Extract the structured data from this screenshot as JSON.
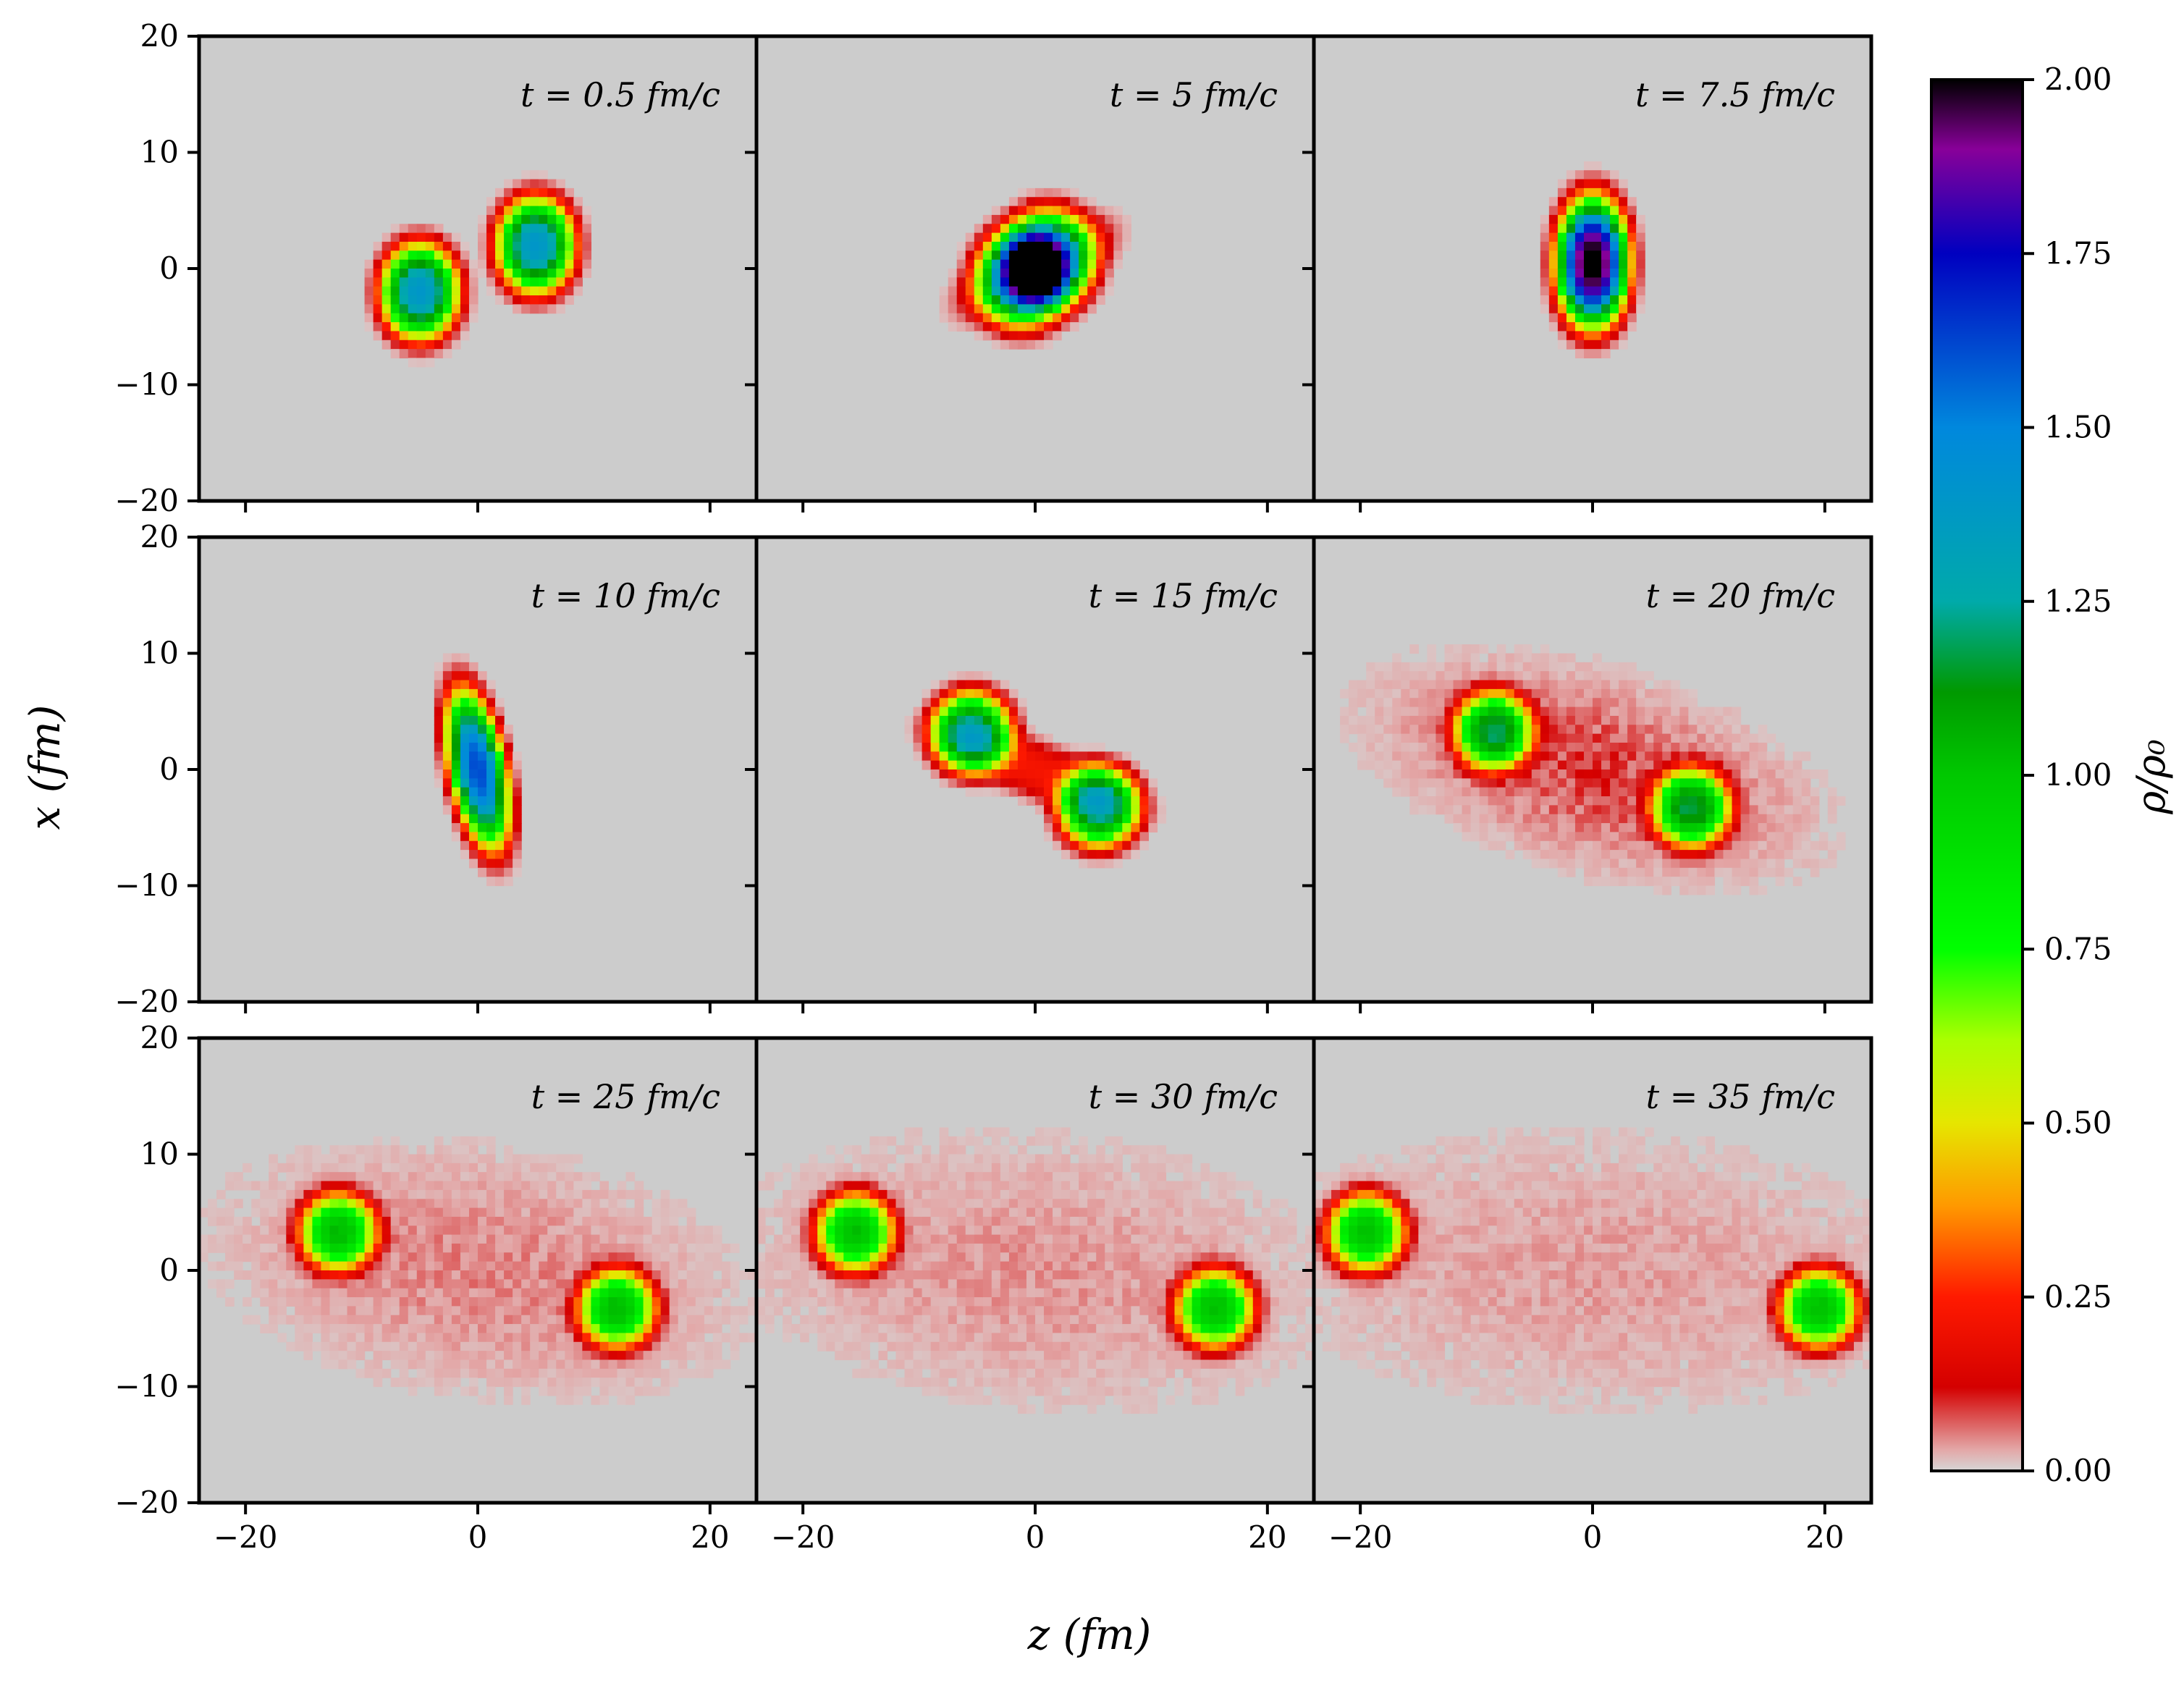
{
  "chart_data": {
    "type": "heatmap",
    "layout": "3x3 small multiples, shared axes",
    "xlabel": "z (fm)",
    "ylabel": "x (fm)",
    "xlim": [
      -24,
      24
    ],
    "ylim": [
      -20,
      20
    ],
    "x_ticks": [
      -20,
      0,
      20
    ],
    "x_tick_labels": [
      "−20",
      "0",
      "20"
    ],
    "y_ticks": [
      20,
      10,
      0,
      -10,
      -20
    ],
    "y_tick_labels": [
      "20",
      "10",
      "0",
      "−10",
      "−20"
    ],
    "colorbar": {
      "label": "ρ/ρ₀",
      "range": [
        0,
        2
      ],
      "ticks": [
        0,
        0.25,
        0.5,
        0.75,
        1.0,
        1.25,
        1.5,
        1.75,
        2.0
      ],
      "tick_labels": [
        "0.00",
        "0.25",
        "0.50",
        "0.75",
        "1.00",
        "1.25",
        "1.50",
        "1.75",
        "2.00"
      ],
      "colormap": [
        {
          "v": 0.0,
          "c": "#d6d6d6"
        },
        {
          "v": 0.03,
          "c": "#e3a8a8"
        },
        {
          "v": 0.12,
          "c": "#d40000"
        },
        {
          "v": 0.25,
          "c": "#ff1a00"
        },
        {
          "v": 0.38,
          "c": "#ff9800"
        },
        {
          "v": 0.5,
          "c": "#e6e600"
        },
        {
          "v": 0.62,
          "c": "#aaff00"
        },
        {
          "v": 0.75,
          "c": "#00ff00"
        },
        {
          "v": 1.0,
          "c": "#00c800"
        },
        {
          "v": 1.12,
          "c": "#009900"
        },
        {
          "v": 1.25,
          "c": "#00aaaa"
        },
        {
          "v": 1.5,
          "c": "#0088dd"
        },
        {
          "v": 1.75,
          "c": "#0000c0"
        },
        {
          "v": 1.9,
          "c": "#880099"
        },
        {
          "v": 2.0,
          "c": "#000000"
        }
      ]
    },
    "background_color": "#cccccc",
    "panels": [
      {
        "time_label": "t = 0.5 fm/c",
        "blobs": [
          {
            "z": -5,
            "x": -2,
            "peak": 1.4,
            "sz": 2.6,
            "sx": 3.2,
            "rho": 0
          },
          {
            "z": 5,
            "x": 2,
            "peak": 1.4,
            "sz": 2.6,
            "sx": 3.2,
            "rho": 0
          }
        ],
        "halo": null
      },
      {
        "time_label": "t = 5 fm/c",
        "blobs": [
          {
            "z": -1.2,
            "x": -0.8,
            "peak": 1.25,
            "sz": 3.0,
            "sx": 3.3,
            "rho": 0
          },
          {
            "z": 1.2,
            "x": 0.8,
            "peak": 1.25,
            "sz": 3.0,
            "sx": 3.3,
            "rho": 0
          },
          {
            "z": 0,
            "x": 0,
            "peak": 0.35,
            "sz": 4.8,
            "sx": 3.2,
            "rho": 0.6
          }
        ],
        "halo": null
      },
      {
        "time_label": "t = 7.5 fm/c",
        "blobs": [
          {
            "z": 0,
            "x": 0.5,
            "peak": 2.05,
            "sz": 2.4,
            "sx": 4.3,
            "rho": 0
          }
        ],
        "halo": null
      },
      {
        "time_label": "t = 10 fm/c",
        "blobs": [
          {
            "z": 0,
            "x": 0,
            "peak": 1.62,
            "sz": 2.1,
            "sx": 5.2,
            "rho": -0.45
          }
        ],
        "halo": null
      },
      {
        "time_label": "t = 15 fm/c",
        "blobs": [
          {
            "z": -5.5,
            "x": 3.2,
            "peak": 1.25,
            "sz": 2.7,
            "sx": 2.7,
            "rho": 0
          },
          {
            "z": 5.5,
            "x": -3.2,
            "peak": 1.25,
            "sz": 2.7,
            "sx": 2.7,
            "rho": 0
          },
          {
            "z": 0,
            "x": 0,
            "peak": 0.22,
            "sz": 6.5,
            "sx": 3.0,
            "rho": -0.75
          }
        ],
        "halo": null
      },
      {
        "time_label": "t = 20 fm/c",
        "blobs": [
          {
            "z": -8.5,
            "x": 3.3,
            "peak": 1.12,
            "sz": 2.6,
            "sx": 2.6,
            "rho": 0
          },
          {
            "z": 8.5,
            "x": -3.3,
            "peak": 1.12,
            "sz": 2.6,
            "sx": 2.6,
            "rho": 0
          }
        ],
        "halo": {
          "peak": 0.09,
          "sz": 11.0,
          "sx": 5.5,
          "rho": -0.45
        }
      },
      {
        "time_label": "t = 25 fm/c",
        "blobs": [
          {
            "z": -12,
            "x": 3.3,
            "peak": 1.0,
            "sz": 2.6,
            "sx": 2.6,
            "rho": 0
          },
          {
            "z": 12,
            "x": -3.3,
            "peak": 1.0,
            "sz": 2.6,
            "sx": 2.6,
            "rho": 0
          }
        ],
        "halo": {
          "peak": 0.05,
          "sz": 14.5,
          "sx": 7.0,
          "rho": -0.25
        }
      },
      {
        "time_label": "t = 30 fm/c",
        "blobs": [
          {
            "z": -15.5,
            "x": 3.3,
            "peak": 1.0,
            "sz": 2.6,
            "sx": 2.6,
            "rho": 0
          },
          {
            "z": 15.5,
            "x": -3.3,
            "peak": 1.0,
            "sz": 2.6,
            "sx": 2.6,
            "rho": 0
          }
        ],
        "halo": {
          "peak": 0.04,
          "sz": 17.5,
          "sx": 8.0,
          "rho": -0.15
        }
      },
      {
        "time_label": "t = 35 fm/c",
        "blobs": [
          {
            "z": -19.5,
            "x": 3.3,
            "peak": 1.0,
            "sz": 2.6,
            "sx": 2.6,
            "rho": 0
          },
          {
            "z": 19.5,
            "x": -3.3,
            "peak": 1.0,
            "sz": 2.6,
            "sx": 2.6,
            "rho": 0
          }
        ],
        "halo": {
          "peak": 0.035,
          "sz": 20.0,
          "sx": 8.5,
          "rho": -0.1
        }
      }
    ]
  }
}
